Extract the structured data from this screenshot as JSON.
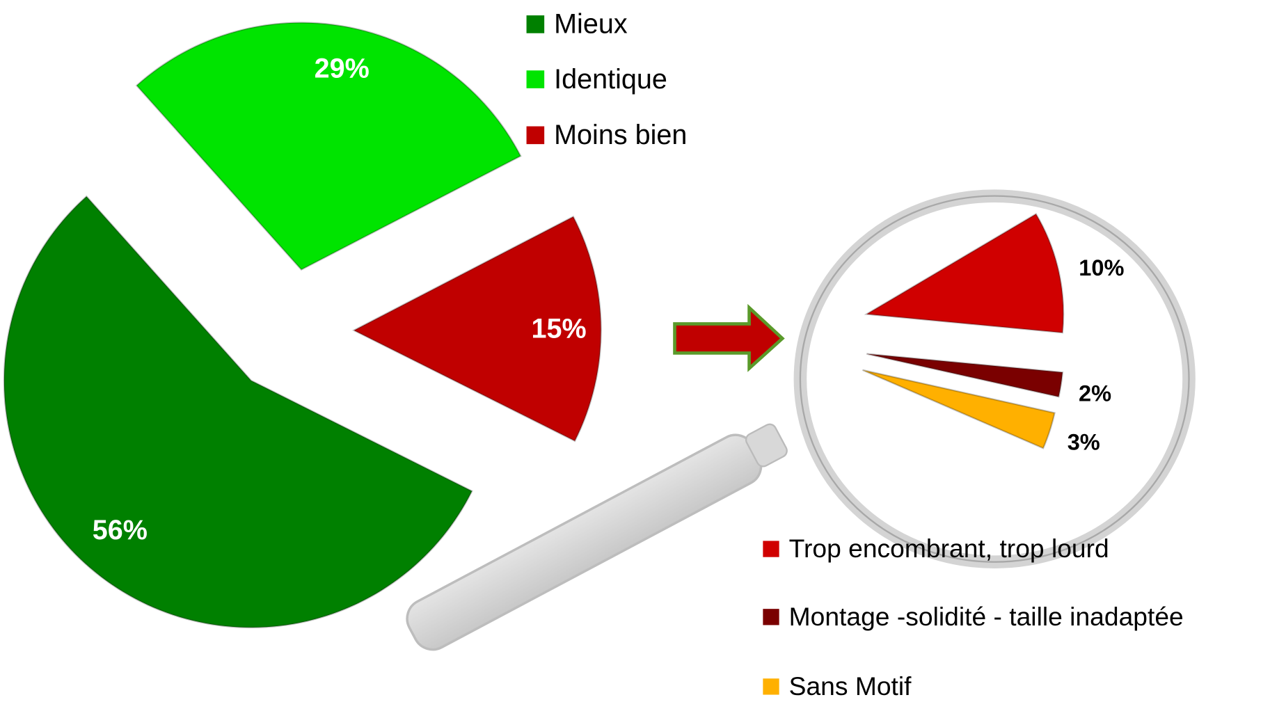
{
  "chart_data": [
    {
      "type": "pie",
      "categories": [
        "Mieux",
        "Identique",
        "Moins bien"
      ],
      "values": [
        56,
        29,
        15
      ],
      "value_labels": [
        "56%",
        "29%",
        "15%"
      ],
      "colors": [
        "#008000",
        "#00e400",
        "#c00000"
      ]
    },
    {
      "type": "pie",
      "categories": [
        "Trop encombrant, trop lourd",
        "Montage -solidité - taille inadaptée",
        "Sans Motif"
      ],
      "values": [
        10,
        2,
        3
      ],
      "value_labels": [
        "10%",
        "2%",
        "3%"
      ],
      "colors": [
        "#d00000",
        "#7a0000",
        "#ffb000"
      ]
    }
  ]
}
